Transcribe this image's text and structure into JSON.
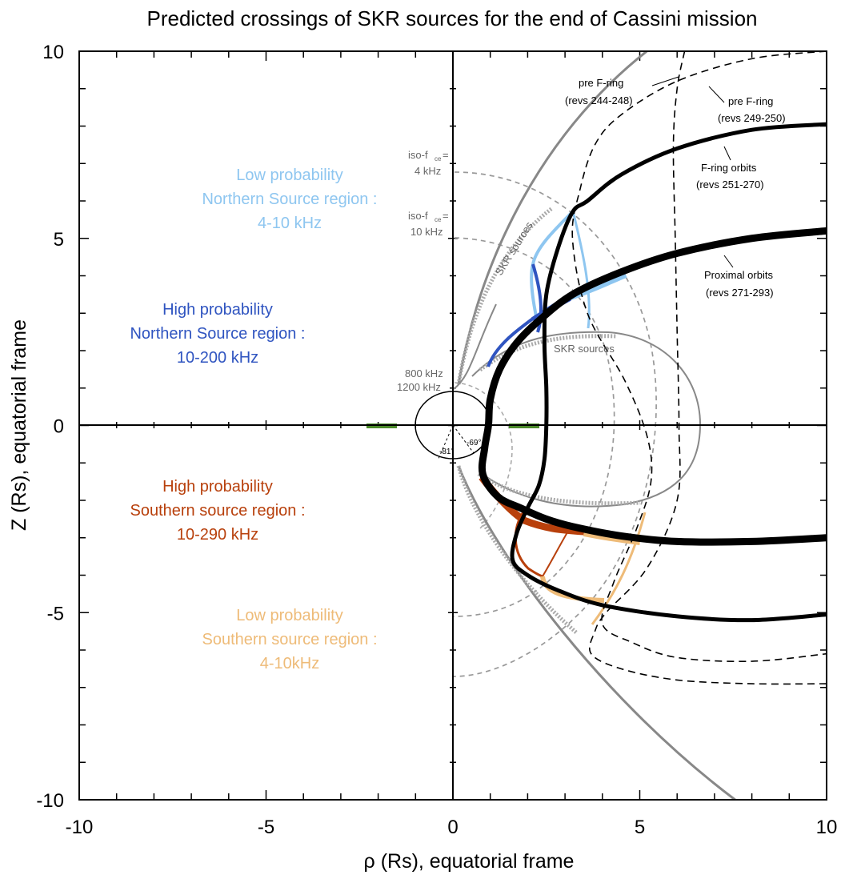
{
  "title": "Predicted crossings of SKR sources for the end of Cassini mission",
  "chart_data": {
    "type": "line",
    "title": "Predicted crossings of SKR sources for the end of Cassini mission",
    "xlabel": "ρ (Rs), equatorial frame",
    "ylabel": "Z (Rs), equatorial frame",
    "xlim": [
      -10,
      10
    ],
    "ylim": [
      -10,
      10
    ],
    "xticks": [
      -10,
      -5,
      0,
      5,
      10
    ],
    "yticks": [
      -10,
      -5,
      0,
      5,
      10
    ],
    "grid": false,
    "series": [
      {
        "name": "F-ring orbits (revs 251-270)",
        "color": "#000000",
        "points": [
          [
            10,
            8.05
          ],
          [
            8,
            7.9
          ],
          [
            6,
            7.4
          ],
          [
            4.5,
            6.7
          ],
          [
            3.6,
            6.0
          ],
          [
            3.2,
            5.7
          ],
          [
            2.8,
            4.7
          ],
          [
            2.5,
            3.5
          ],
          [
            2.45,
            2.2
          ],
          [
            2.5,
            1.0
          ],
          [
            2.5,
            0
          ],
          [
            2.45,
            -0.9
          ],
          [
            2.3,
            -1.6
          ],
          [
            2.0,
            -2.2
          ],
          [
            1.7,
            -2.9
          ],
          [
            1.6,
            -3.6
          ],
          [
            2.0,
            -4.0
          ],
          [
            2.8,
            -4.4
          ],
          [
            4.0,
            -4.8
          ],
          [
            6.0,
            -5.1
          ],
          [
            8.0,
            -5.2
          ],
          [
            10,
            -5.05
          ]
        ]
      },
      {
        "name": "Proximal orbits (revs 271-293)",
        "color": "#000000",
        "points": [
          [
            10,
            5.2
          ],
          [
            8,
            5.0
          ],
          [
            6,
            4.6
          ],
          [
            4.5,
            4.1
          ],
          [
            3.2,
            3.5
          ],
          [
            2.3,
            2.8
          ],
          [
            1.7,
            2.2
          ],
          [
            1.25,
            1.5
          ],
          [
            1.0,
            0.7
          ],
          [
            0.95,
            0
          ],
          [
            0.85,
            -0.6
          ],
          [
            0.8,
            -1.3
          ],
          [
            1.2,
            -1.9
          ],
          [
            1.8,
            -2.2
          ],
          [
            2.5,
            -2.5
          ],
          [
            3.2,
            -2.7
          ],
          [
            4.5,
            -2.95
          ],
          [
            6.0,
            -3.1
          ],
          [
            8.0,
            -3.1
          ],
          [
            10,
            -3.0
          ]
        ]
      },
      {
        "name": "pre F-ring (revs 244-248)",
        "color": "#000000",
        "points": [
          [
            6.2,
            10
          ],
          [
            6.0,
            9.0
          ],
          [
            5.9,
            7.5
          ],
          [
            5.95,
            5.0
          ],
          [
            6.0,
            2.5
          ],
          [
            6.05,
            0
          ],
          [
            6.0,
            -2.0
          ],
          [
            5.2,
            -3.8
          ],
          [
            4.1,
            -5.0
          ],
          [
            3.8,
            -5.5
          ],
          [
            3.7,
            -6.1
          ],
          [
            4.5,
            -6.5
          ],
          [
            6.0,
            -6.8
          ],
          [
            8.0,
            -6.9
          ],
          [
            10,
            -6.9
          ]
        ]
      },
      {
        "name": "pre F-ring (revs 249-250)",
        "color": "#000000",
        "points": [
          [
            10,
            10
          ],
          [
            8,
            9.8
          ],
          [
            6,
            9.2
          ],
          [
            4.5,
            8.3
          ],
          [
            3.8,
            7.5
          ],
          [
            3.4,
            6.3
          ],
          [
            3.2,
            5.0
          ],
          [
            3.6,
            3.0
          ],
          [
            4.6,
            1.2
          ],
          [
            5.2,
            -0.3
          ],
          [
            5.3,
            -1.5
          ],
          [
            4.9,
            -2.8
          ],
          [
            4.3,
            -4.2
          ],
          [
            4.0,
            -5.3
          ],
          [
            4.8,
            -5.8
          ],
          [
            6.0,
            -6.2
          ],
          [
            8.0,
            -6.3
          ],
          [
            10,
            -6.1
          ]
        ]
      }
    ],
    "annotations": [
      "pre F-ring",
      "(revs 244-248)",
      "pre F-ring",
      "(revs 249-250)",
      "F-ring orbits",
      "(revs 251-270)",
      "Proximal orbits",
      "(revs 271-293)",
      "iso-f",
      "ce",
      "=",
      "4 kHz",
      "iso-f",
      "ce",
      "=",
      "10 kHz",
      "800 kHz",
      "1200 kHz",
      "SKR sources",
      "SKR sources",
      "-81°",
      "-69°"
    ],
    "regions": [
      {
        "lines": [
          "Low probability",
          "Northern Source region :",
          "4-10 kHz"
        ],
        "color": "#8ec6f0"
      },
      {
        "lines": [
          "High probability",
          "Northern Source region :",
          "10-200 kHz"
        ],
        "color": "#2f54c0"
      },
      {
        "lines": [
          "High probability",
          "Southern source region  :",
          "10-290 kHz"
        ],
        "color": "#b8400c"
      },
      {
        "lines": [
          "Low probability",
          "Southern source region  :",
          "4-10kHz"
        ],
        "color": "#eebb78"
      }
    ]
  }
}
